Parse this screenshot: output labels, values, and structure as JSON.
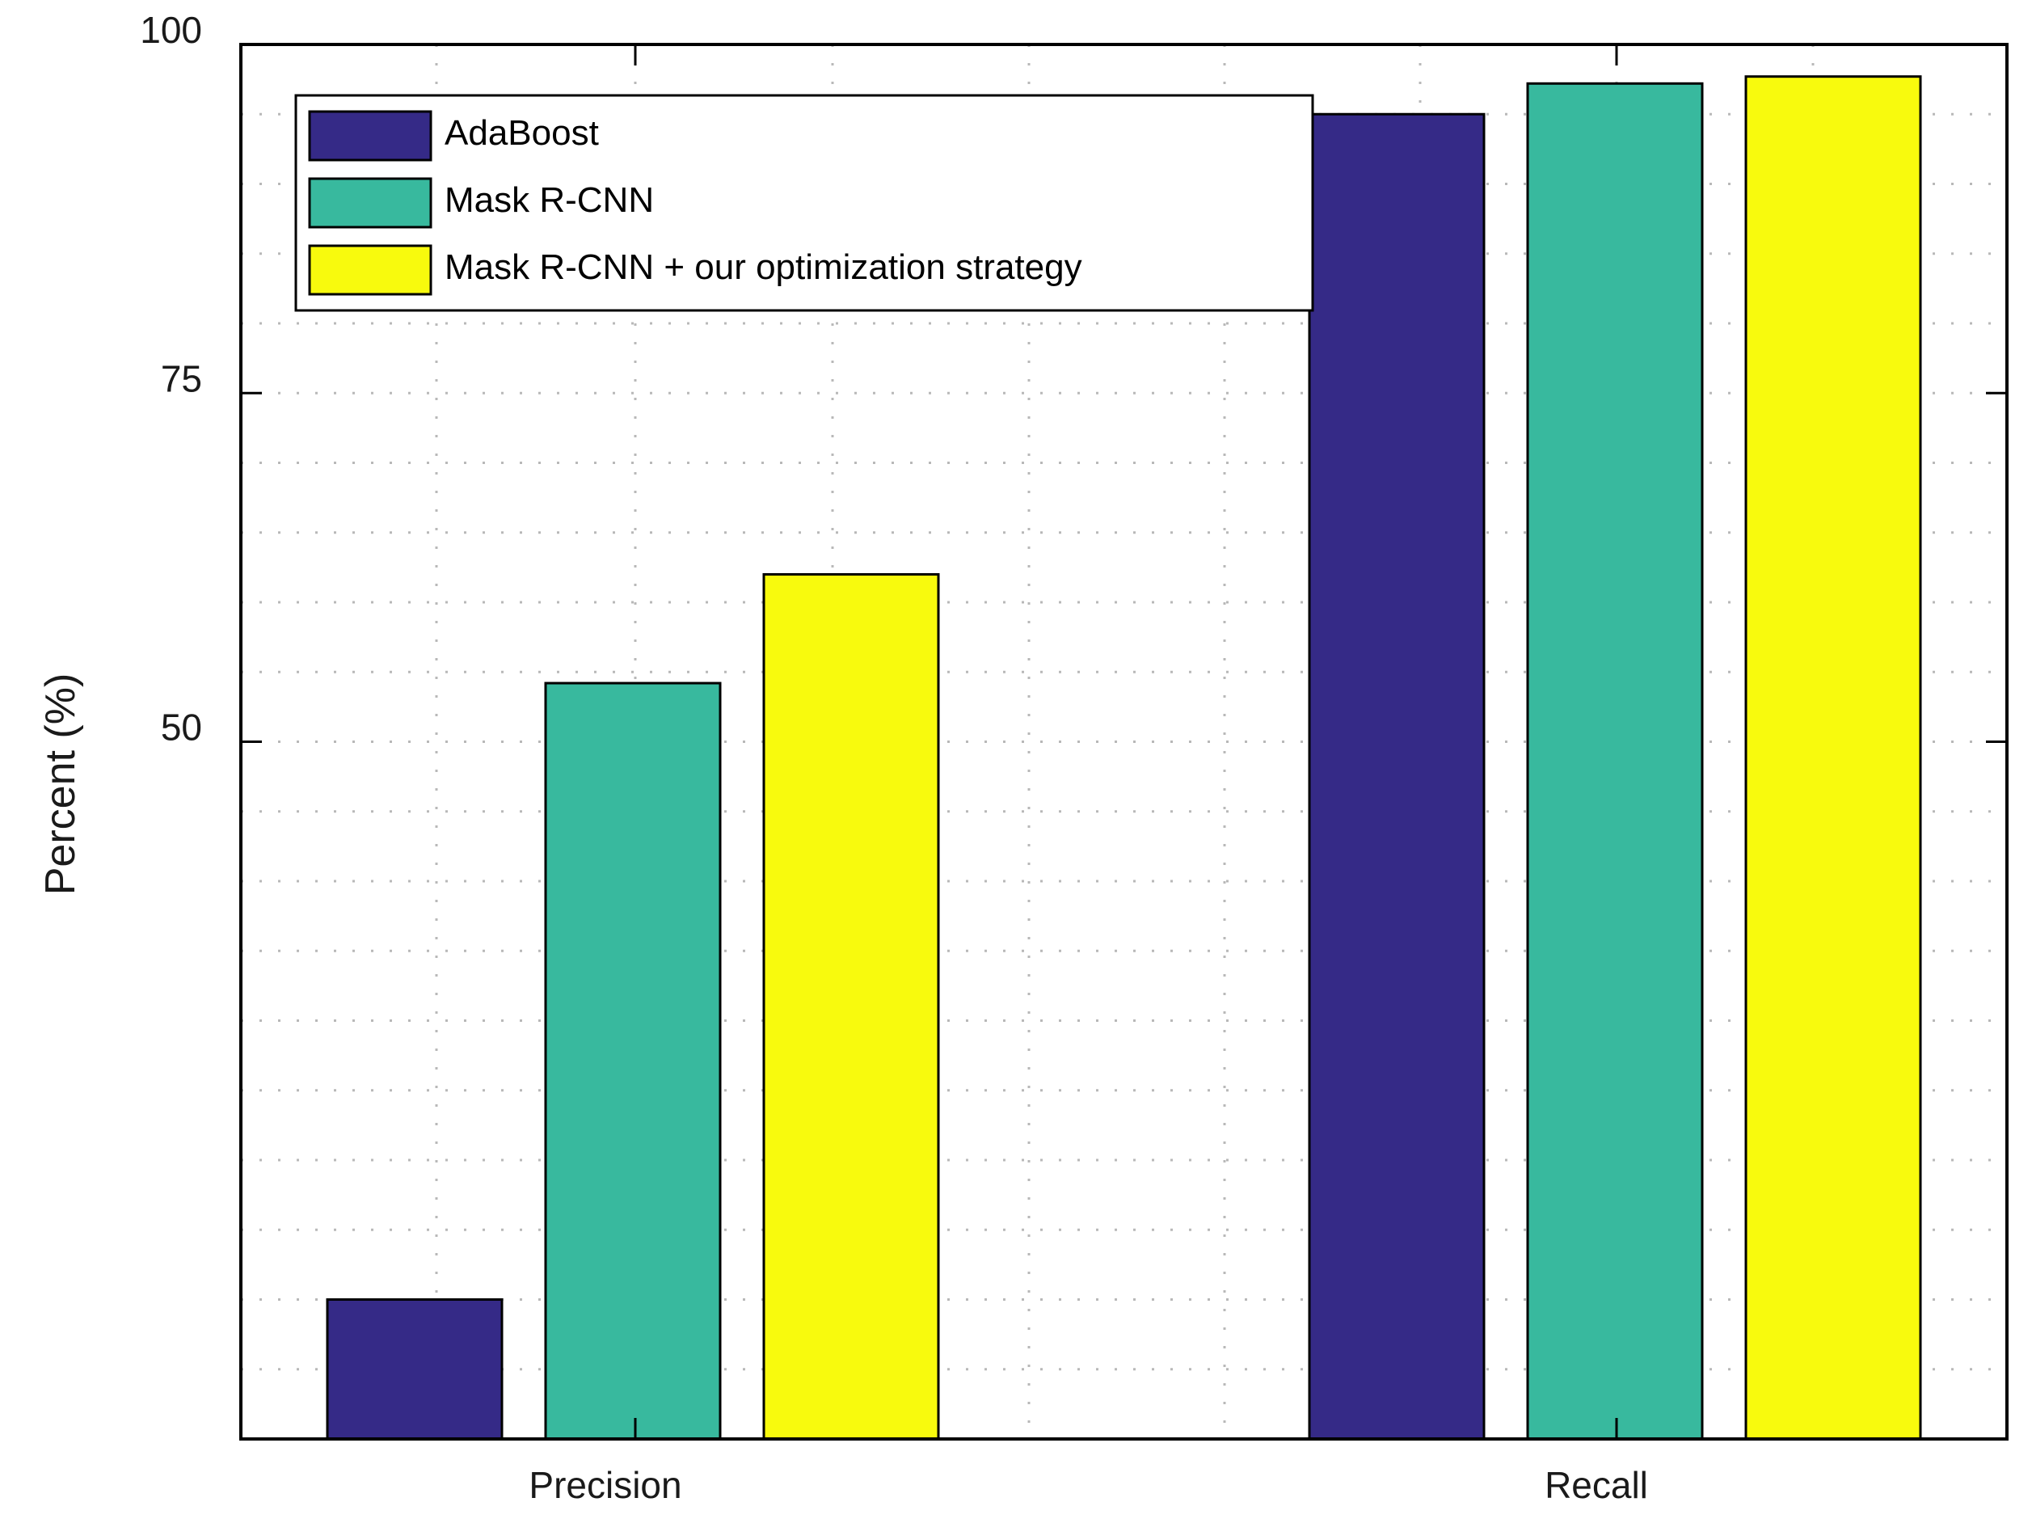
{
  "chart_data": {
    "type": "bar",
    "title": "",
    "xlabel": "",
    "ylabel": "Percent (%)",
    "categories": [
      "Precision",
      "Recall"
    ],
    "series": [
      {
        "name": "AdaBoost",
        "color": "#352a87",
        "values": [
          10,
          95
        ]
      },
      {
        "name": "Mask R-CNN",
        "color": "#38b99e",
        "values": [
          54.2,
          97.2
        ]
      },
      {
        "name": "Mask R-CNN + our optimization strategy",
        "color": "#f8fa0d",
        "values": [
          62,
          97.7
        ]
      }
    ],
    "ylim": [
      0,
      100
    ],
    "yticks": [
      50,
      75,
      100
    ],
    "y_minor_gridlines": [
      5,
      10,
      15,
      20,
      25,
      30,
      35,
      40,
      45,
      55,
      60,
      65,
      70,
      80,
      85,
      90,
      95
    ],
    "grid": true,
    "legend_position": "top-left"
  }
}
